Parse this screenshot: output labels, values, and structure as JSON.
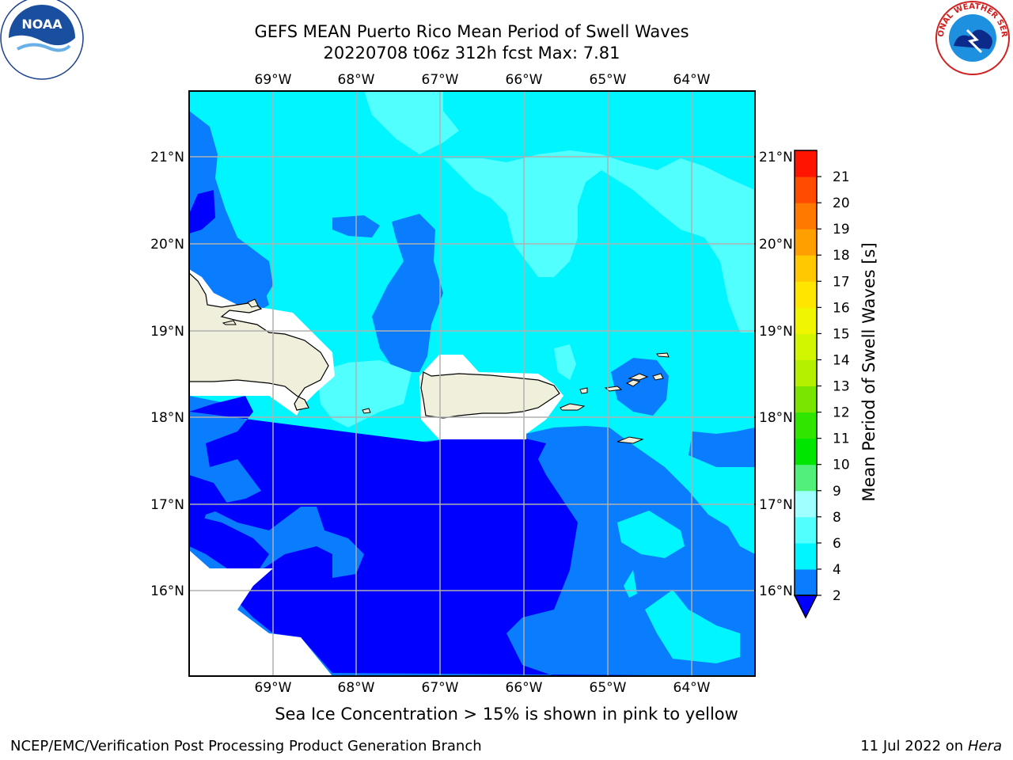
{
  "title": {
    "line1": "GEFS MEAN Puerto Rico Mean Period of Swell Waves",
    "line2": "20220708 t06z 312h fcst   Max: 7.81"
  },
  "logos": {
    "left": "NOAA",
    "right": "NATIONAL WEATHER SERVICE"
  },
  "map": {
    "lon_ticks": [
      "69°W",
      "68°W",
      "67°W",
      "66°W",
      "65°W",
      "64°W"
    ],
    "lat_ticks": [
      "21°N",
      "20°N",
      "19°N",
      "18°N",
      "17°N",
      "16°N"
    ],
    "land_color": "#efefdc",
    "palette": {
      "2-4": "#0000ff",
      "4-6": "#0a7dff",
      "6-8": "#00f5ff",
      "8-9": "#52ffff"
    }
  },
  "colorbar": {
    "label": "Mean Period of Swell Waves [s]",
    "ticks": [
      "2",
      "4",
      "6",
      "8",
      "9",
      "10",
      "11",
      "12",
      "13",
      "14",
      "15",
      "16",
      "17",
      "18",
      "19",
      "20",
      "21"
    ],
    "colors": [
      "#0a7dff",
      "#00f5ff",
      "#52ffff",
      "#a0ffff",
      "#52f07a",
      "#00e600",
      "#30e600",
      "#7ae600",
      "#b4f000",
      "#d2f500",
      "#f0f500",
      "#ffe600",
      "#ffc800",
      "#ffa000",
      "#ff7800",
      "#ff4b00",
      "#ff1400"
    ],
    "extend_color": "#0000ff"
  },
  "caption": "Sea Ice Concentration > 15% is shown in pink to yellow",
  "footer": {
    "left": "NCEP/EMC/Verification Post Processing Product Generation Branch",
    "right_date": "11 Jul 2022 on ",
    "right_host": "Hera"
  }
}
